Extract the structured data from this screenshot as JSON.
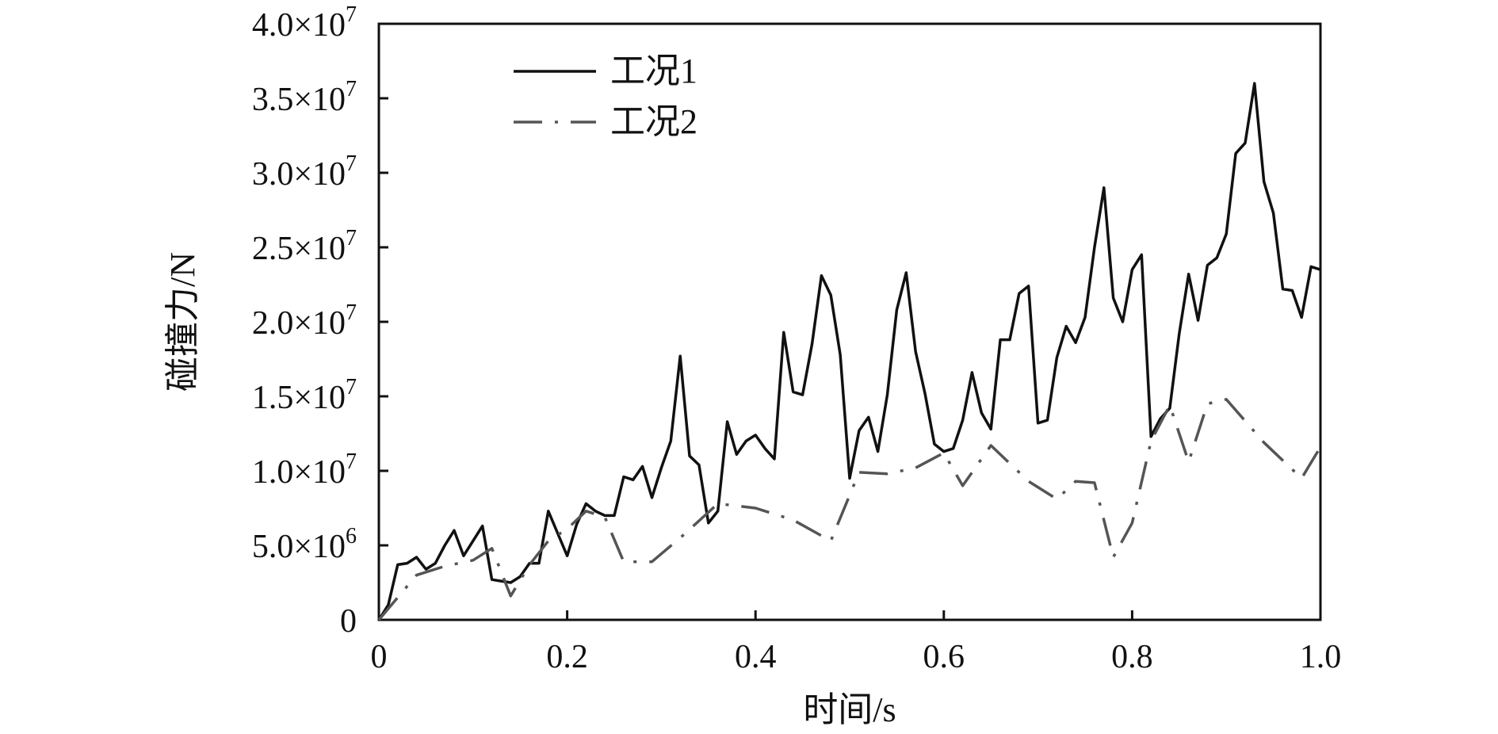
{
  "chart_data": {
    "type": "line",
    "title": "",
    "xlabel": "时间/s",
    "ylabel": "碰撞力/N",
    "xlim": [
      0,
      1.0
    ],
    "ylim": [
      0,
      40000000
    ],
    "grid": false,
    "legend_position": "top-left",
    "x_ticks": [
      {
        "value": 0,
        "label": "0"
      },
      {
        "value": 0.2,
        "label": "0.2"
      },
      {
        "value": 0.4,
        "label": "0.4"
      },
      {
        "value": 0.6,
        "label": "0.6"
      },
      {
        "value": 0.8,
        "label": "0.8"
      },
      {
        "value": 1.0,
        "label": "1.0"
      }
    ],
    "y_ticks": [
      {
        "value": 0,
        "label": "0",
        "exp": ""
      },
      {
        "value": 5000000,
        "label": "5.0×10",
        "exp": "6"
      },
      {
        "value": 10000000,
        "label": "1.0×10",
        "exp": "7"
      },
      {
        "value": 15000000,
        "label": "1.5×10",
        "exp": "7"
      },
      {
        "value": 20000000,
        "label": "2.0×10",
        "exp": "7"
      },
      {
        "value": 25000000,
        "label": "2.5×10",
        "exp": "7"
      },
      {
        "value": 30000000,
        "label": "3.0×10",
        "exp": "7"
      },
      {
        "value": 35000000,
        "label": "3.5×10",
        "exp": "7"
      },
      {
        "value": 40000000,
        "label": "4.0×10",
        "exp": "7"
      }
    ],
    "series": [
      {
        "name": "工况1",
        "color": "#111111",
        "style": "solid",
        "x": [
          0.0,
          0.01,
          0.02,
          0.03,
          0.04,
          0.05,
          0.06,
          0.07,
          0.08,
          0.09,
          0.1,
          0.11,
          0.12,
          0.13,
          0.14,
          0.15,
          0.16,
          0.17,
          0.18,
          0.19,
          0.2,
          0.21,
          0.22,
          0.23,
          0.24,
          0.25,
          0.26,
          0.27,
          0.28,
          0.29,
          0.3,
          0.31,
          0.32,
          0.33,
          0.34,
          0.35,
          0.36,
          0.37,
          0.38,
          0.39,
          0.4,
          0.41,
          0.42,
          0.43,
          0.44,
          0.45,
          0.46,
          0.47,
          0.48,
          0.49,
          0.5,
          0.51,
          0.52,
          0.53,
          0.54,
          0.55,
          0.56,
          0.57,
          0.58,
          0.59,
          0.6,
          0.61,
          0.62,
          0.63,
          0.64,
          0.65,
          0.66,
          0.67,
          0.68,
          0.69,
          0.7,
          0.71,
          0.72,
          0.73,
          0.74,
          0.75,
          0.76,
          0.77,
          0.78,
          0.79,
          0.8,
          0.81,
          0.82,
          0.83,
          0.84,
          0.85,
          0.86,
          0.87,
          0.88,
          0.89,
          0.9,
          0.91,
          0.92,
          0.93,
          0.94,
          0.95,
          0.96,
          0.97,
          0.98,
          0.99,
          1.0
        ],
        "values": [
          0,
          1000000,
          3700000,
          3800000,
          4200000,
          3400000,
          3800000,
          5000000,
          6000000,
          4300000,
          5300000,
          6300000,
          2700000,
          2600000,
          2500000,
          2900000,
          3800000,
          3800000,
          7300000,
          5800000,
          4300000,
          6400000,
          7800000,
          7300000,
          7000000,
          7000000,
          9600000,
          9400000,
          10300000,
          8200000,
          10200000,
          12000000,
          17700000,
          11000000,
          10400000,
          6500000,
          7300000,
          13300000,
          11100000,
          12000000,
          12400000,
          11500000,
          10800000,
          19300000,
          15300000,
          15100000,
          18500000,
          23100000,
          21800000,
          17800000,
          9500000,
          12700000,
          13600000,
          11300000,
          15100000,
          20800000,
          23300000,
          18000000,
          15200000,
          11800000,
          11300000,
          11500000,
          13400000,
          16600000,
          13900000,
          12800000,
          18800000,
          18800000,
          21900000,
          22400000,
          13200000,
          13400000,
          17600000,
          19700000,
          18600000,
          20300000,
          25000000,
          29000000,
          21600000,
          20000000,
          23500000,
          24500000,
          12300000,
          13500000,
          14200000,
          19200000,
          23200000,
          20100000,
          23800000,
          24300000,
          25900000,
          31300000,
          32000000,
          36000000,
          29400000,
          27300000,
          22200000,
          22100000,
          20300000,
          23700000,
          23500000
        ]
      },
      {
        "name": "工况2",
        "color": "#555555",
        "style": "dashdot",
        "x": [
          0.0,
          0.04,
          0.07,
          0.1,
          0.12,
          0.14,
          0.16,
          0.18,
          0.2,
          0.22,
          0.24,
          0.26,
          0.29,
          0.32,
          0.36,
          0.4,
          0.44,
          0.48,
          0.51,
          0.54,
          0.57,
          0.6,
          0.62,
          0.65,
          0.69,
          0.72,
          0.74,
          0.76,
          0.78,
          0.8,
          0.82,
          0.84,
          0.86,
          0.88,
          0.9,
          0.94,
          0.98,
          1.0
        ],
        "values": [
          0,
          3000000,
          3600000,
          4000000,
          4800000,
          1600000,
          3700000,
          5300000,
          6100000,
          7300000,
          6900000,
          3900000,
          3900000,
          5500000,
          7800000,
          7500000,
          6700000,
          5300000,
          9900000,
          9800000,
          10200000,
          11200000,
          9000000,
          11700000,
          9300000,
          8100000,
          9300000,
          9200000,
          4200000,
          6500000,
          12000000,
          14400000,
          10600000,
          14500000,
          14800000,
          11900000,
          9500000,
          11600000
        ]
      }
    ]
  }
}
